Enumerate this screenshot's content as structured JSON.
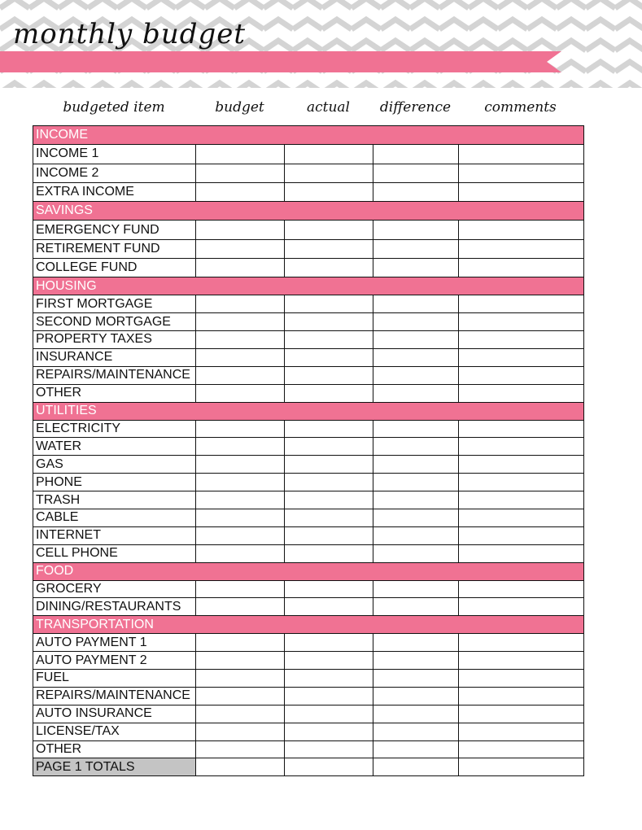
{
  "title": "monthly budget",
  "colors": {
    "accent": "#f07293",
    "chevron": "#d4d4d4",
    "totals": "#c4c4c4"
  },
  "columns": [
    "budgeted item",
    "budget",
    "actual",
    "difference",
    "comments"
  ],
  "sections": [
    {
      "name": "INCOME",
      "items": [
        "INCOME 1",
        "INCOME 2",
        "EXTRA INCOME"
      ]
    },
    {
      "name": "SAVINGS",
      "items": [
        "EMERGENCY FUND",
        "RETIREMENT FUND",
        "COLLEGE FUND"
      ]
    },
    {
      "name": "HOUSING",
      "items": [
        "FIRST MORTGAGE",
        "SECOND MORTGAGE",
        "PROPERTY TAXES",
        "INSURANCE",
        "REPAIRS/MAINTENANCE",
        "OTHER"
      ]
    },
    {
      "name": "UTILITIES",
      "items": [
        "ELECTRICITY",
        "WATER",
        "GAS",
        "PHONE",
        "TRASH",
        "CABLE",
        "INTERNET",
        "CELL PHONE"
      ]
    },
    {
      "name": "FOOD",
      "items": [
        "GROCERY",
        "DINING/RESTAURANTS"
      ]
    },
    {
      "name": "TRANSPORTATION",
      "items": [
        "AUTO PAYMENT 1",
        "AUTO PAYMENT 2",
        "FUEL",
        "REPAIRS/MAINTENANCE",
        "AUTO INSURANCE",
        "LICENSE/TAX",
        "OTHER"
      ]
    }
  ],
  "totals_label": "PAGE 1 TOTALS"
}
